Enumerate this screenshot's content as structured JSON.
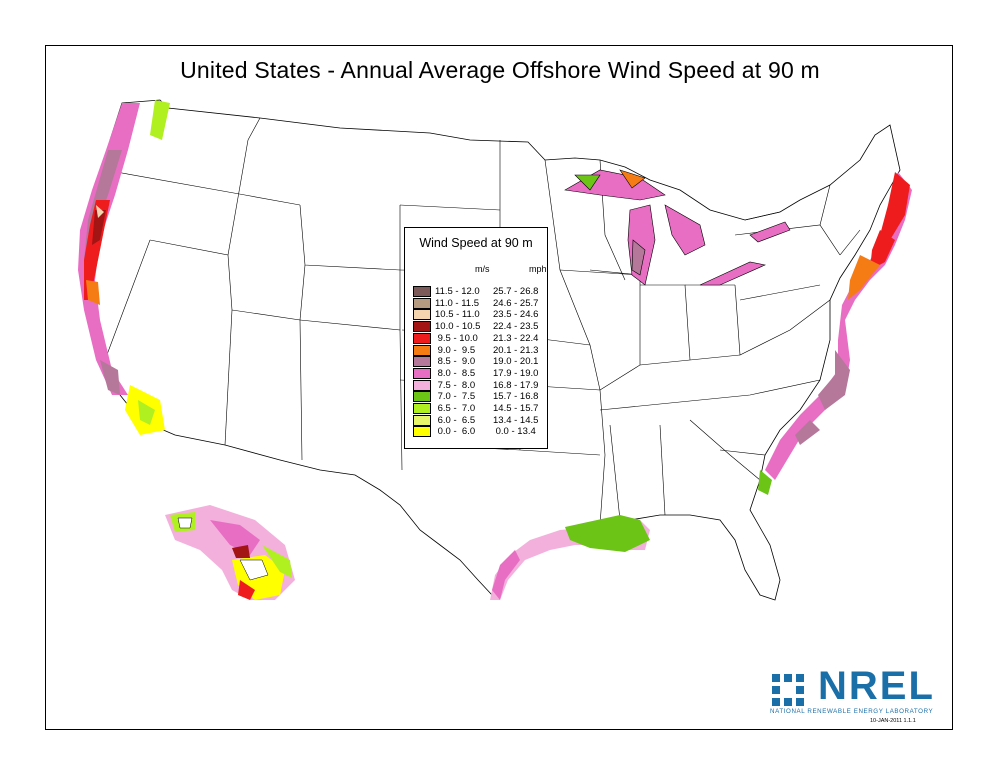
{
  "title": "United States - Annual Average Offshore Wind Speed at 90 m",
  "legend": {
    "title": "Wind Speed at 90 m",
    "unit_ms": "m/s",
    "unit_mph": "mph",
    "rows": [
      {
        "ms": "11.5 - 12.0",
        "mph": "25.7 - 26.8",
        "color": "#7d5a5a"
      },
      {
        "ms": "11.0 - 11.5",
        "mph": "24.6 - 25.7",
        "color": "#b69b80"
      },
      {
        "ms": "10.5 - 11.0",
        "mph": "23.5 - 24.6",
        "color": "#f5d4b0"
      },
      {
        "ms": "10.0 - 10.5",
        "mph": "22.4 - 23.5",
        "color": "#a31414"
      },
      {
        "ms": " 9.5 - 10.0",
        "mph": "21.3 - 22.4",
        "color": "#ee1c1c"
      },
      {
        "ms": " 9.0 -  9.5",
        "mph": "20.1 - 21.3",
        "color": "#f57c14"
      },
      {
        "ms": " 8.5 -  9.0",
        "mph": "19.0 - 20.1",
        "color": "#b5779a"
      },
      {
        "ms": " 8.0 -  8.5",
        "mph": "17.9 - 19.0",
        "color": "#e86ec4"
      },
      {
        "ms": " 7.5 -  8.0",
        "mph": "16.8 - 17.9",
        "color": "#f4b0dc"
      },
      {
        "ms": " 7.0 -  7.5",
        "mph": "15.7 - 16.8",
        "color": "#6cc417"
      },
      {
        "ms": " 6.5 -  7.0",
        "mph": "14.5 - 15.7",
        "color": "#b0f020"
      },
      {
        "ms": " 6.0 -  6.5",
        "mph": "13.4 - 14.5",
        "color": "#e6f56a"
      },
      {
        "ms": " 0.0 -  6.0",
        "mph": " 0.0 - 13.4",
        "color": "#ffff00"
      }
    ]
  },
  "logo": {
    "name": "NREL",
    "subtitle": "NATIONAL RENEWABLE ENERGY LABORATORY",
    "color": "#1b6fa8"
  },
  "version": "10-JAN-2011 1.1.1"
}
